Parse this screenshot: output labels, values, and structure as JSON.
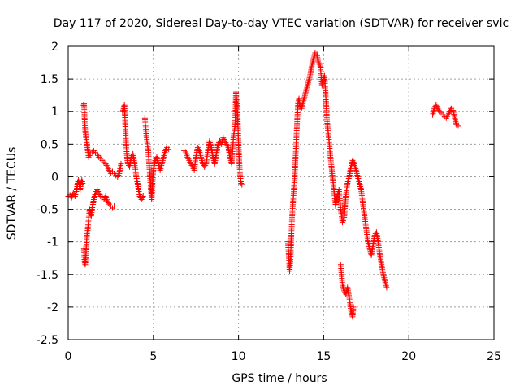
{
  "colors": {
    "series": "#ff0000",
    "grid": "#a0a0a0",
    "axis": "#000000"
  },
  "chart_data": {
    "type": "scatter",
    "title": "Day 117 of 2020, Sidereal Day-to-day VTEC variation (SDTVAR) for receiver svic",
    "xlabel": "GPS time / hours",
    "ylabel": "SDTVAR / TECUs",
    "xlim": [
      0,
      25
    ],
    "ylim": [
      -2.5,
      2
    ],
    "xticks": [
      0,
      5,
      10,
      15,
      20,
      25
    ],
    "yticks": [
      -2.5,
      -2,
      -1.5,
      -1,
      -0.5,
      0,
      0.5,
      1,
      1.5,
      2
    ],
    "xtick_labels": [
      "0",
      "5",
      "10",
      "15",
      "20",
      "25"
    ],
    "ytick_labels": [
      "-2.5",
      "-2",
      "-1.5",
      "-1",
      "-0.5",
      "0",
      "0.5",
      "1",
      "1.5",
      "2"
    ],
    "grid": true,
    "marker": "+",
    "series": [
      {
        "name": "SDTVAR",
        "segments": [
          [
            [
              0.0,
              -0.3
            ],
            [
              0.1,
              -0.28
            ],
            [
              0.2,
              -0.32
            ],
            [
              0.3,
              -0.25
            ],
            [
              0.4,
              -0.3
            ],
            [
              0.5,
              -0.2
            ],
            [
              0.55,
              -0.1
            ],
            [
              0.6,
              -0.05
            ],
            [
              0.7,
              -0.2
            ],
            [
              0.75,
              -0.1
            ],
            [
              0.8,
              -0.05
            ],
            [
              0.85,
              -0.1
            ]
          ],
          [
            [
              0.9,
              1.1
            ],
            [
              0.93,
              1.12
            ],
            [
              0.96,
              0.9
            ],
            [
              1.0,
              0.7
            ],
            [
              1.05,
              0.6
            ],
            [
              1.1,
              0.5
            ],
            [
              1.15,
              0.4
            ],
            [
              1.2,
              0.3
            ],
            [
              1.3,
              0.35
            ],
            [
              1.4,
              0.38
            ],
            [
              1.5,
              0.4
            ],
            [
              1.6,
              0.37
            ],
            [
              1.7,
              0.35
            ],
            [
              1.8,
              0.3
            ],
            [
              1.9,
              0.28
            ],
            [
              2.0,
              0.25
            ],
            [
              2.1,
              0.22
            ],
            [
              2.2,
              0.2
            ],
            [
              2.3,
              0.15
            ],
            [
              2.4,
              0.1
            ],
            [
              2.5,
              0.05
            ],
            [
              2.6,
              0.08
            ],
            [
              2.7,
              0.05
            ],
            [
              2.8,
              0.02
            ],
            [
              2.9,
              0.0
            ],
            [
              3.0,
              0.05
            ],
            [
              3.1,
              0.2
            ]
          ],
          [
            [
              0.92,
              -1.1
            ],
            [
              0.96,
              -1.3
            ],
            [
              1.0,
              -1.35
            ],
            [
              1.05,
              -1.15
            ],
            [
              1.1,
              -0.9
            ],
            [
              1.15,
              -0.8
            ],
            [
              1.2,
              -0.65
            ],
            [
              1.25,
              -0.5
            ],
            [
              1.3,
              -0.55
            ],
            [
              1.35,
              -0.6
            ],
            [
              1.4,
              -0.5
            ],
            [
              1.5,
              -0.35
            ],
            [
              1.6,
              -0.25
            ],
            [
              1.7,
              -0.2
            ],
            [
              1.8,
              -0.25
            ],
            [
              1.9,
              -0.3
            ],
            [
              2.0,
              -0.32
            ],
            [
              2.1,
              -0.35
            ],
            [
              2.2,
              -0.3
            ],
            [
              2.3,
              -0.38
            ],
            [
              2.4,
              -0.42
            ],
            [
              2.5,
              -0.45
            ],
            [
              2.6,
              -0.48
            ],
            [
              2.7,
              -0.45
            ]
          ],
          [
            [
              3.2,
              1.0
            ],
            [
              3.3,
              1.1
            ],
            [
              3.35,
              0.8
            ],
            [
              3.4,
              0.5
            ],
            [
              3.45,
              0.3
            ],
            [
              3.5,
              0.2
            ],
            [
              3.6,
              0.15
            ],
            [
              3.7,
              0.3
            ],
            [
              3.8,
              0.35
            ],
            [
              3.9,
              0.2
            ],
            [
              4.0,
              0.0
            ],
            [
              4.1,
              -0.15
            ],
            [
              4.2,
              -0.3
            ],
            [
              4.3,
              -0.35
            ],
            [
              4.4,
              -0.3
            ]
          ],
          [
            [
              4.5,
              0.9
            ],
            [
              4.55,
              0.75
            ],
            [
              4.6,
              0.6
            ],
            [
              4.7,
              0.4
            ],
            [
              4.75,
              0.2
            ],
            [
              4.8,
              0.0
            ],
            [
              4.85,
              -0.2
            ],
            [
              4.9,
              -0.35
            ],
            [
              4.95,
              -0.1
            ],
            [
              5.0,
              0.1
            ],
            [
              5.1,
              0.25
            ],
            [
              5.2,
              0.3
            ],
            [
              5.3,
              0.2
            ],
            [
              5.4,
              0.1
            ],
            [
              5.5,
              0.2
            ],
            [
              5.6,
              0.3
            ],
            [
              5.7,
              0.4
            ],
            [
              5.8,
              0.45
            ],
            [
              5.9,
              0.42
            ]
          ],
          [
            [
              6.8,
              0.4
            ],
            [
              6.9,
              0.38
            ],
            [
              7.0,
              0.3
            ],
            [
              7.1,
              0.25
            ],
            [
              7.2,
              0.2
            ],
            [
              7.3,
              0.15
            ],
            [
              7.4,
              0.1
            ],
            [
              7.5,
              0.3
            ],
            [
              7.6,
              0.45
            ],
            [
              7.7,
              0.4
            ],
            [
              7.8,
              0.3
            ],
            [
              7.9,
              0.2
            ],
            [
              8.0,
              0.15
            ],
            [
              8.1,
              0.2
            ],
            [
              8.2,
              0.4
            ],
            [
              8.3,
              0.55
            ],
            [
              8.4,
              0.45
            ],
            [
              8.5,
              0.3
            ],
            [
              8.6,
              0.2
            ],
            [
              8.7,
              0.35
            ],
            [
              8.8,
              0.5
            ],
            [
              8.9,
              0.55
            ],
            [
              9.0,
              0.5
            ],
            [
              9.1,
              0.6
            ],
            [
              9.2,
              0.55
            ],
            [
              9.3,
              0.5
            ],
            [
              9.4,
              0.45
            ],
            [
              9.5,
              0.3
            ],
            [
              9.6,
              0.2
            ],
            [
              9.7,
              0.6
            ],
            [
              9.8,
              0.8
            ],
            [
              9.85,
              1.3
            ],
            [
              9.9,
              1.15
            ],
            [
              9.95,
              0.9
            ],
            [
              10.0,
              0.5
            ],
            [
              10.05,
              0.2
            ],
            [
              10.1,
              0.0
            ],
            [
              10.15,
              -0.1
            ],
            [
              10.2,
              -0.12
            ]
          ],
          [
            [
              12.9,
              -1.0
            ],
            [
              12.95,
              -1.2
            ],
            [
              13.0,
              -1.45
            ],
            [
              13.05,
              -1.3
            ],
            [
              13.1,
              -0.9
            ],
            [
              13.15,
              -0.6
            ],
            [
              13.2,
              -0.4
            ],
            [
              13.25,
              -0.2
            ],
            [
              13.3,
              0.0
            ],
            [
              13.35,
              0.3
            ],
            [
              13.4,
              0.6
            ],
            [
              13.45,
              0.9
            ],
            [
              13.5,
              1.15
            ],
            [
              13.55,
              1.2
            ],
            [
              13.6,
              1.1
            ],
            [
              13.7,
              1.05
            ],
            [
              13.8,
              1.15
            ],
            [
              13.9,
              1.25
            ],
            [
              14.0,
              1.35
            ],
            [
              14.1,
              1.45
            ],
            [
              14.2,
              1.55
            ],
            [
              14.3,
              1.7
            ],
            [
              14.4,
              1.8
            ],
            [
              14.5,
              1.9
            ],
            [
              14.6,
              1.88
            ],
            [
              14.65,
              1.8
            ],
            [
              14.7,
              1.75
            ],
            [
              14.8,
              1.7
            ],
            [
              14.85,
              1.55
            ],
            [
              14.9,
              1.4
            ],
            [
              14.95,
              1.45
            ],
            [
              15.0,
              1.5
            ],
            [
              15.05,
              1.55
            ],
            [
              15.1,
              1.35
            ],
            [
              15.15,
              1.1
            ],
            [
              15.2,
              0.85
            ],
            [
              15.3,
              0.6
            ],
            [
              15.4,
              0.3
            ],
            [
              15.5,
              0.05
            ],
            [
              15.6,
              -0.2
            ],
            [
              15.7,
              -0.45
            ],
            [
              15.8,
              -0.3
            ],
            [
              15.9,
              -0.2
            ],
            [
              16.0,
              -0.5
            ],
            [
              16.1,
              -0.7
            ],
            [
              16.2,
              -0.65
            ],
            [
              16.3,
              -0.3
            ],
            [
              16.4,
              -0.1
            ],
            [
              16.5,
              0.0
            ],
            [
              16.6,
              0.15
            ],
            [
              16.7,
              0.25
            ],
            [
              16.8,
              0.2
            ],
            [
              16.9,
              0.1
            ],
            [
              17.0,
              0.0
            ],
            [
              17.1,
              -0.1
            ],
            [
              17.2,
              -0.2
            ],
            [
              17.3,
              -0.4
            ],
            [
              17.4,
              -0.6
            ],
            [
              17.5,
              -0.8
            ],
            [
              17.6,
              -1.0
            ],
            [
              17.7,
              -1.1
            ],
            [
              17.8,
              -1.2
            ],
            [
              17.9,
              -1.05
            ],
            [
              18.0,
              -0.9
            ],
            [
              18.1,
              -0.85
            ],
            [
              18.2,
              -1.0
            ],
            [
              18.3,
              -1.2
            ],
            [
              18.4,
              -1.35
            ],
            [
              18.5,
              -1.5
            ],
            [
              18.6,
              -1.6
            ],
            [
              18.7,
              -1.7
            ]
          ],
          [
            [
              16.0,
              -1.35
            ],
            [
              16.05,
              -1.5
            ],
            [
              16.1,
              -1.65
            ],
            [
              16.2,
              -1.75
            ],
            [
              16.3,
              -1.8
            ],
            [
              16.4,
              -1.7
            ],
            [
              16.5,
              -1.85
            ],
            [
              16.6,
              -2.05
            ],
            [
              16.7,
              -2.15
            ],
            [
              16.75,
              -2.0
            ]
          ],
          [
            [
              21.4,
              0.95
            ],
            [
              21.5,
              1.05
            ],
            [
              21.6,
              1.1
            ],
            [
              21.7,
              1.05
            ],
            [
              21.8,
              1.0
            ],
            [
              21.9,
              0.98
            ],
            [
              22.0,
              0.95
            ],
            [
              22.1,
              0.92
            ],
            [
              22.2,
              0.9
            ],
            [
              22.3,
              0.95
            ],
            [
              22.4,
              1.0
            ],
            [
              22.5,
              1.05
            ],
            [
              22.6,
              1.02
            ],
            [
              22.7,
              0.9
            ],
            [
              22.8,
              0.8
            ],
            [
              22.9,
              0.78
            ]
          ]
        ]
      }
    ]
  }
}
